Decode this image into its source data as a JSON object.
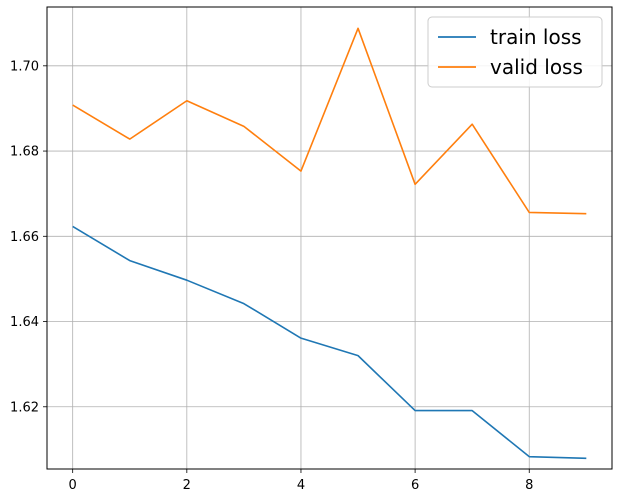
{
  "chart_data": {
    "type": "line",
    "x": [
      0,
      1,
      2,
      3,
      4,
      5,
      6,
      7,
      8,
      9
    ],
    "series": [
      {
        "name": "train loss",
        "color": "#1f77b4",
        "values": [
          1.6623,
          1.6543,
          1.6497,
          1.6442,
          1.6361,
          1.632,
          1.6191,
          1.6191,
          1.6083,
          1.6079
        ]
      },
      {
        "name": "valid loss",
        "color": "#ff7f0e",
        "values": [
          1.6908,
          1.6828,
          1.6918,
          1.6858,
          1.6753,
          1.7088,
          1.6722,
          1.6863,
          1.6656,
          1.6653
        ]
      }
    ],
    "xlim": [
      -0.45,
      9.45
    ],
    "ylim": [
      1.6054,
      1.7138
    ],
    "xticks": [
      0,
      2,
      4,
      6,
      8
    ],
    "yticks": [
      1.62,
      1.64,
      1.66,
      1.68,
      1.7
    ],
    "xtick_labels": [
      "0",
      "2",
      "4",
      "6",
      "8"
    ],
    "ytick_labels": [
      "1.62",
      "1.64",
      "1.66",
      "1.68",
      "1.70"
    ],
    "grid": true,
    "legend_position": "top-right",
    "title": "",
    "xlabel": "",
    "ylabel": ""
  }
}
